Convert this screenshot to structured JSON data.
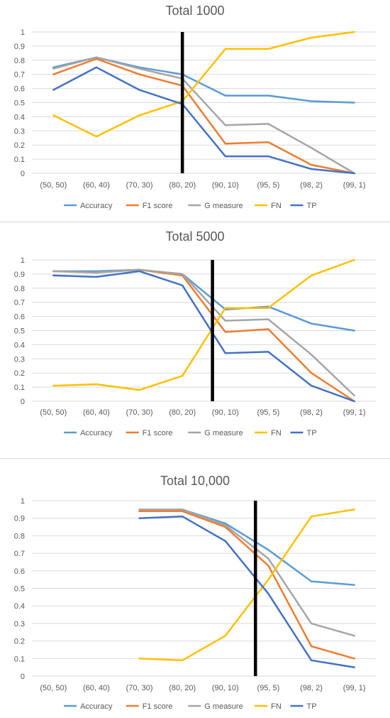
{
  "chart_data": [
    {
      "type": "line",
      "title": "Total 1000",
      "categories": [
        "(50, 50)",
        "(60, 40)",
        "(70, 30)",
        "(80, 20)",
        "(90, 10)",
        "(95, 5)",
        "(98, 2)",
        "(99, 1)"
      ],
      "yticks": [
        "0",
        "0.1",
        "0.2",
        "0.3",
        "0.4",
        "0.5",
        "0.6",
        "0.7",
        "0.8",
        "0.9",
        "1"
      ],
      "ylim": [
        0,
        1
      ],
      "grid": true,
      "legend_position": "bottom",
      "vertical_marker_x": 3,
      "series": [
        {
          "name": "Accuracy",
          "color": "#5b9bd5",
          "values": [
            0.75,
            0.82,
            0.75,
            0.7,
            0.55,
            0.55,
            0.51,
            0.5
          ]
        },
        {
          "name": "F1 score",
          "color": "#ed7d31",
          "values": [
            0.7,
            0.81,
            0.7,
            0.62,
            0.21,
            0.22,
            0.06,
            0.0
          ]
        },
        {
          "name": "G measure",
          "color": "#a5a5a5",
          "values": [
            0.74,
            0.82,
            0.74,
            0.67,
            0.34,
            0.35,
            0.18,
            0.0
          ]
        },
        {
          "name": "FN",
          "color": "#ffc000",
          "values": [
            0.41,
            0.26,
            0.41,
            0.51,
            0.88,
            0.88,
            0.96,
            1.0
          ]
        },
        {
          "name": "TP",
          "color": "#4472c4",
          "values": [
            0.59,
            0.75,
            0.59,
            0.49,
            0.12,
            0.12,
            0.03,
            0.0
          ]
        }
      ]
    },
    {
      "type": "line",
      "title": "Total 5000",
      "categories": [
        "(50, 50)",
        "(60, 40)",
        "(70, 30)",
        "(80, 20)",
        "(90, 10)",
        "(95, 5)",
        "(98, 2)",
        "(99, 1)"
      ],
      "yticks": [
        "0",
        "0.1",
        "0.2",
        "0.3",
        "0.4",
        "0.5",
        "0.6",
        "0.7",
        "0.8",
        "0.9",
        "1"
      ],
      "ylim": [
        0,
        1
      ],
      "grid": true,
      "legend_position": "bottom",
      "vertical_marker_x": 3.7,
      "series": [
        {
          "name": "Accuracy",
          "color": "#5b9bd5",
          "values": [
            0.92,
            0.92,
            0.93,
            0.9,
            0.65,
            0.67,
            0.55,
            0.5
          ]
        },
        {
          "name": "F1 score",
          "color": "#ed7d31",
          "values": [
            0.92,
            0.91,
            0.93,
            0.89,
            0.49,
            0.51,
            0.2,
            0.0
          ]
        },
        {
          "name": "G measure",
          "color": "#a5a5a5",
          "values": [
            0.92,
            0.91,
            0.93,
            0.9,
            0.57,
            0.58,
            0.33,
            0.04
          ]
        },
        {
          "name": "FN",
          "color": "#ffc000",
          "values": [
            0.11,
            0.12,
            0.08,
            0.18,
            0.66,
            0.66,
            0.89,
            1.0
          ]
        },
        {
          "name": "TP",
          "color": "#4472c4",
          "values": [
            0.89,
            0.88,
            0.92,
            0.82,
            0.34,
            0.35,
            0.11,
            0.0
          ]
        }
      ]
    },
    {
      "type": "line",
      "title": "Total 10,000",
      "categories": [
        "(50, 50)",
        "(60, 40)",
        "(70, 30)",
        "(80, 20)",
        "(90, 10)",
        "(95, 5)",
        "(98, 2)",
        "(99, 1)"
      ],
      "yticks": [
        "0",
        "0.1",
        "0.2",
        "0.3",
        "0.4",
        "0.5",
        "0.6",
        "0.7",
        "0.8",
        "0.9",
        "1"
      ],
      "ylim": [
        0,
        1
      ],
      "grid": true,
      "legend_position": "bottom",
      "vertical_marker_x": 4.7,
      "series": [
        {
          "name": "Accuracy",
          "color": "#5b9bd5",
          "values": [
            null,
            null,
            0.94,
            0.95,
            0.87,
            0.72,
            0.54,
            0.52
          ]
        },
        {
          "name": "F1 score",
          "color": "#ed7d31",
          "values": [
            null,
            null,
            0.94,
            0.94,
            0.85,
            0.63,
            0.17,
            0.1
          ]
        },
        {
          "name": "G measure",
          "color": "#a5a5a5",
          "values": [
            null,
            null,
            0.95,
            0.95,
            0.86,
            0.67,
            0.3,
            0.23
          ]
        },
        {
          "name": "FN",
          "color": "#ffc000",
          "values": [
            null,
            null,
            0.1,
            0.09,
            0.23,
            0.55,
            0.91,
            0.95
          ]
        },
        {
          "name": "TP",
          "color": "#4472c4",
          "values": [
            null,
            null,
            0.9,
            0.91,
            0.77,
            0.47,
            0.09,
            0.05
          ]
        }
      ]
    }
  ]
}
